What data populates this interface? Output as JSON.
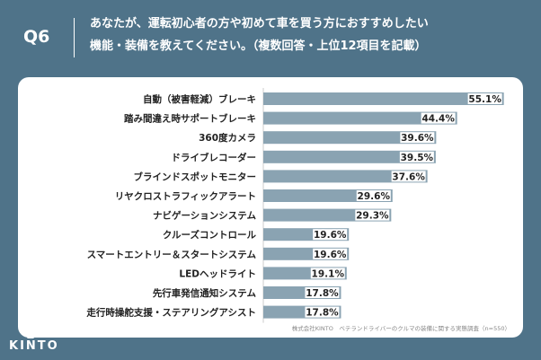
{
  "header": {
    "question_label": "Q6",
    "question_line1": "あなたが、運転初心者の方や初めて車を買う方におすすめしたい",
    "question_line2": "機能・装備を教えてください。（複数回答・上位12項目を記載）"
  },
  "footer": {
    "source": "株式会社KINTO　ベテランドライバーのクルマの装備に関する実態調査（n=550）",
    "brand": "KINTO"
  },
  "colors": {
    "background": "#4f7389",
    "bar": "#8aa3b2",
    "label_bg": "#ffffff"
  },
  "chart_data": {
    "type": "bar",
    "orientation": "horizontal",
    "title": "あなたが、運転初心者の方や初めて車を買う方におすすめしたい機能・装備を教えてください。（複数回答・上位12項目を記載）",
    "categories": [
      "自動（被害軽減）ブレーキ",
      "踏み間違え時サポートブレーキ",
      "360度カメラ",
      "ドライブレコーダー",
      "ブラインドスポットモニター",
      "リヤクロストラフィックアラート",
      "ナビゲーションシステム",
      "クルーズコントロール",
      "スマートエントリー＆スタートシステム",
      "LEDヘッドライト",
      "先行車発信通知システム",
      "走行時操舵支援・ステアリングアシスト"
    ],
    "values": [
      55.1,
      44.4,
      39.6,
      39.5,
      37.6,
      29.6,
      29.3,
      19.6,
      19.6,
      19.1,
      17.8,
      17.8
    ],
    "value_labels": [
      "55.1%",
      "44.4%",
      "39.6%",
      "39.5%",
      "37.6%",
      "29.6%",
      "29.3%",
      "19.6%",
      "19.6%",
      "19.1%",
      "17.8%",
      "17.8%"
    ],
    "xlim": [
      0,
      56
    ],
    "unit": "%"
  }
}
